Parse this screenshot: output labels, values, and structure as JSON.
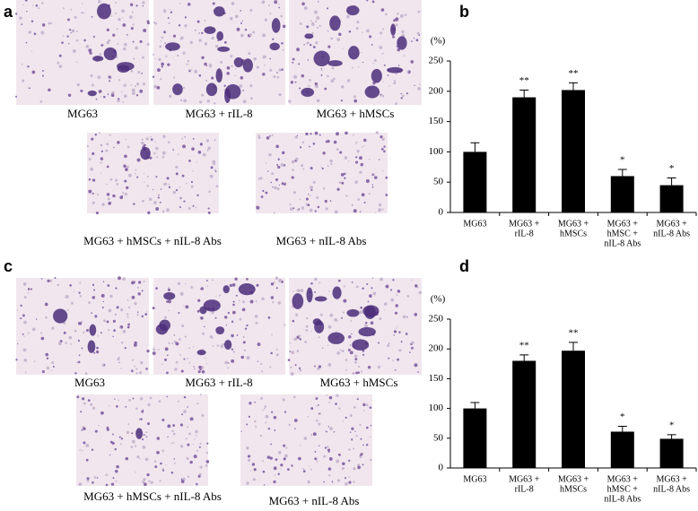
{
  "figure": {
    "labels": [
      "a",
      "b",
      "c",
      "d"
    ],
    "micrographs": [
      {
        "captions": [
          "MG63",
          "MG63 + rIL-8",
          "MG63 + hMSCs",
          "MG63 + hMSCs  + nIL-8 Abs",
          "MG63 + nIL-8 Abs"
        ]
      },
      {
        "captions": [
          "MG63",
          "MG63 + rIL-8",
          "MG63 + hMSCs",
          "MG63 + hMSCs  + nIL-8 Abs",
          "MG63 + nIL-8 Abs"
        ]
      }
    ]
  },
  "chart_data": [
    {
      "type": "bar",
      "ylabel": "(%)",
      "color": "#000000",
      "categories": [
        [
          "MG63"
        ],
        [
          "MG63 +",
          "rIL-8"
        ],
        [
          "MG63 +",
          "hMSCs"
        ],
        [
          "MG63 +",
          "hMSC +",
          "nIL-8 Abs"
        ],
        [
          "MG63 +",
          "nIL-8 Abs"
        ]
      ],
      "values": [
        100,
        190,
        202,
        60,
        45
      ],
      "errors": [
        15,
        12,
        12,
        11,
        12
      ],
      "annotations": [
        null,
        "**",
        "**",
        "*",
        "*"
      ],
      "ylim": [
        0,
        250
      ],
      "yticks": [
        0,
        50,
        100,
        150,
        200,
        250
      ]
    },
    {
      "type": "bar",
      "ylabel": "(%)",
      "color": "#000000",
      "categories": [
        [
          "MG63"
        ],
        [
          "MG63 +",
          "rIL-8"
        ],
        [
          "MG63 +",
          "hMSCs"
        ],
        [
          "MG63 +",
          "hMSC +",
          "nIL-8 Abs"
        ],
        [
          "MG63 +",
          "nIL-8 Abs"
        ]
      ],
      "values": [
        100,
        180,
        197,
        61,
        49
      ],
      "errors": [
        10,
        10,
        14,
        9,
        7
      ],
      "annotations": [
        null,
        "**",
        "**",
        "*",
        "*"
      ],
      "ylim": [
        0,
        250
      ],
      "yticks": [
        0,
        50,
        100,
        150,
        200,
        250
      ]
    }
  ]
}
